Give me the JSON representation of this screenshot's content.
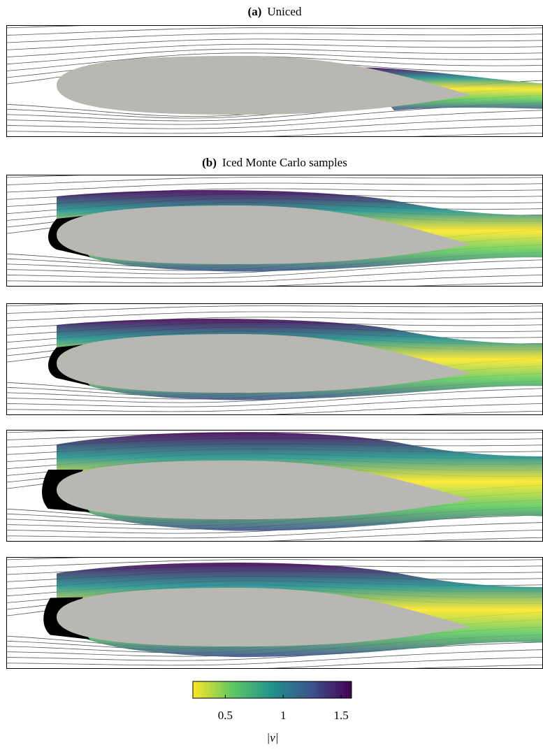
{
  "figure": {
    "panels": [
      {
        "label": "(a)",
        "title": "Uniced"
      },
      {
        "label": "(b)",
        "title": "Iced Monte Carlo samples"
      }
    ]
  },
  "colorbar": {
    "label": "|v|",
    "lim": [
      0.22,
      1.59
    ],
    "ticks": [
      0.5,
      1,
      1.5
    ],
    "colormap": [
      "#fde725",
      "#5ec962",
      "#21918c",
      "#3b528b",
      "#440154"
    ]
  }
}
